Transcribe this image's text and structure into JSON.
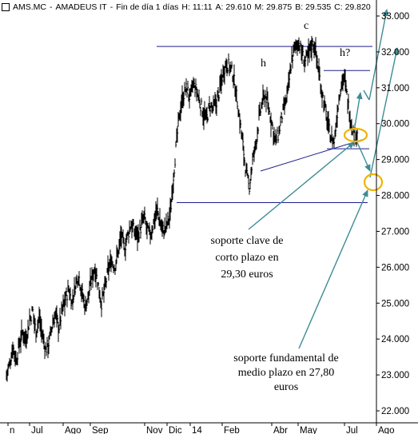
{
  "header": {
    "symbol": "AMS.MC",
    "name": "AMADEUS IT",
    "interval": "Fin de día 1 días",
    "high": "H: 11:11",
    "open": "A: 29.610",
    "max": "M: 29.875",
    "low": "B: 29.535",
    "close": "C: 29.820"
  },
  "chart_data": {
    "type": "bar",
    "subtype": "ohlc",
    "title": "",
    "ylim": [
      22.0,
      33.0
    ],
    "y_ticks": [
      "22.000",
      "23.000",
      "24.000",
      "25.000",
      "26.000",
      "27.000",
      "28.000",
      "29.000",
      "30.000",
      "31.000",
      "32.000",
      "33.000"
    ],
    "x_ticks": [
      "n",
      "Jul",
      "Ago",
      "Sep",
      "Nov",
      "Dic",
      "14",
      "Feb",
      "Abr",
      "May",
      "Jul",
      "Ago"
    ],
    "series": [
      {
        "values": [
          23.0,
          23.3,
          23.8,
          23.4,
          23.9,
          24.2,
          24.0,
          24.5,
          24.8,
          24.2,
          24.6,
          24.1,
          23.7,
          23.9,
          24.4,
          24.7,
          24.3,
          24.8,
          25.1,
          25.4,
          25.0,
          25.5,
          25.8,
          25.3,
          24.9,
          25.2,
          25.7,
          26.0,
          25.5,
          25.0,
          25.4,
          25.9,
          26.2,
          26.0,
          26.4,
          26.9,
          26.5,
          26.9,
          27.2,
          27.0,
          26.9,
          27.1,
          27.4,
          27.0,
          26.9,
          27.3,
          27.6,
          27.2,
          27.0,
          27.2,
          27.5,
          28.6,
          29.6,
          30.4,
          30.8,
          31.0,
          30.7,
          31.1,
          30.9,
          30.6,
          30.3,
          30.1,
          30.5,
          30.4,
          30.6,
          30.9,
          31.4,
          31.7,
          31.6,
          31.4,
          30.9,
          30.2,
          29.5,
          28.7,
          28.2,
          28.9,
          29.4,
          30.1,
          30.6,
          30.8,
          30.4,
          30.0,
          29.5,
          29.7,
          30.2,
          30.5,
          31.0,
          31.8,
          32.1,
          32.3,
          32.0,
          31.7,
          31.9,
          32.2,
          32.2,
          31.6,
          31.0,
          30.5,
          30.0,
          29.6,
          29.5,
          30.4,
          31.1,
          31.3,
          30.7,
          30.1,
          29.7,
          29.8
        ]
      }
    ],
    "annotations": {
      "peak_c": "c",
      "shoulder_h": "h",
      "shoulder_h2": "h?",
      "note_short_term": [
        "soporte clave de",
        "corto plazo en",
        "29,30 euros"
      ],
      "note_mid_term": [
        "soporte fundamental de",
        "medio plazo en 27,80",
        "euros"
      ]
    },
    "levels": {
      "resistance": 32.15,
      "neckline_right": 31.48,
      "short_term_support": 29.3,
      "mid_term_support": 27.8
    },
    "grid": false,
    "legend": "none",
    "colors": {
      "price": "#000000",
      "levels": "#1e1e8c",
      "projection": "#3c8c96",
      "highlight": "#f0b400"
    }
  }
}
